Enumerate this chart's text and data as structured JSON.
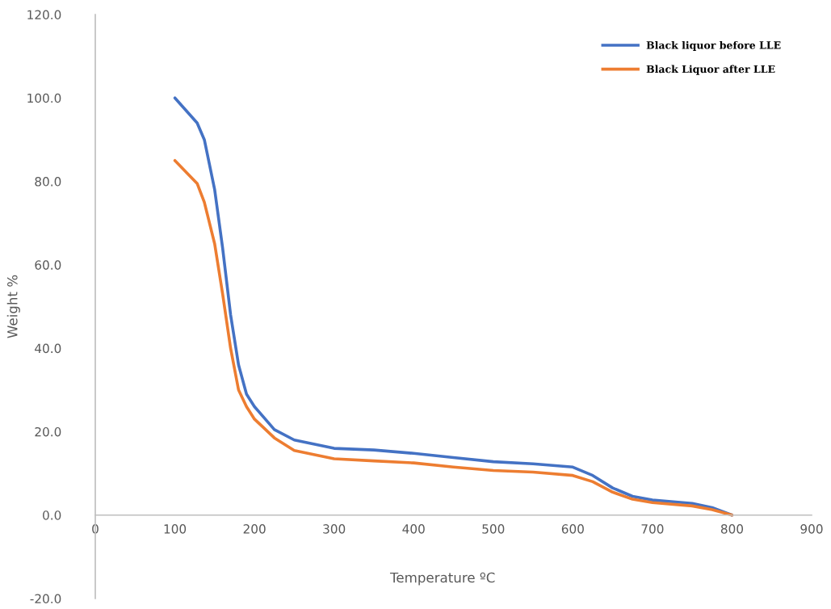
{
  "chart_data": {
    "type": "line",
    "xlabel": "Temperature ºC",
    "ylabel": "Weight %",
    "xlim": [
      0,
      900
    ],
    "ylim": [
      -20,
      120
    ],
    "xticks": [
      0,
      100,
      200,
      300,
      400,
      500,
      600,
      700,
      800,
      900
    ],
    "yticks": [
      {
        "value": -20,
        "label": "-20.0"
      },
      {
        "value": 0,
        "label": "0.0"
      },
      {
        "value": 20,
        "label": "20.0"
      },
      {
        "value": 40,
        "label": "40.0"
      },
      {
        "value": 60,
        "label": "60.0"
      },
      {
        "value": 80,
        "label": "80.0"
      },
      {
        "value": 100,
        "label": "100.0"
      },
      {
        "value": 120,
        "label": "120.0"
      }
    ],
    "x": [
      100,
      128,
      137,
      150,
      160,
      170,
      180,
      190,
      200,
      225,
      250,
      300,
      350,
      400,
      450,
      500,
      550,
      600,
      625,
      650,
      675,
      700,
      750,
      775,
      800
    ],
    "series": [
      {
        "name": "Black liquor before LLE",
        "color": "#4472c4",
        "values": [
          100,
          94,
          90,
          78,
          64,
          48,
          36,
          29,
          26,
          20.5,
          18,
          16,
          15.6,
          14.8,
          13.8,
          12.8,
          12.3,
          11.5,
          9.5,
          6.5,
          4.5,
          3.6,
          2.8,
          1.8,
          0
        ]
      },
      {
        "name": "Black Liquor after LLE",
        "color": "#ed7d31",
        "values": [
          85,
          79.5,
          75,
          65,
          53,
          40,
          30,
          26,
          23,
          18.5,
          15.5,
          13.5,
          13,
          12.5,
          11.5,
          10.7,
          10.3,
          9.5,
          8,
          5.5,
          3.8,
          3,
          2.2,
          1.3,
          0
        ]
      }
    ],
    "legend": "top right",
    "grid": false,
    "marker": "none",
    "line_style": "solid"
  }
}
